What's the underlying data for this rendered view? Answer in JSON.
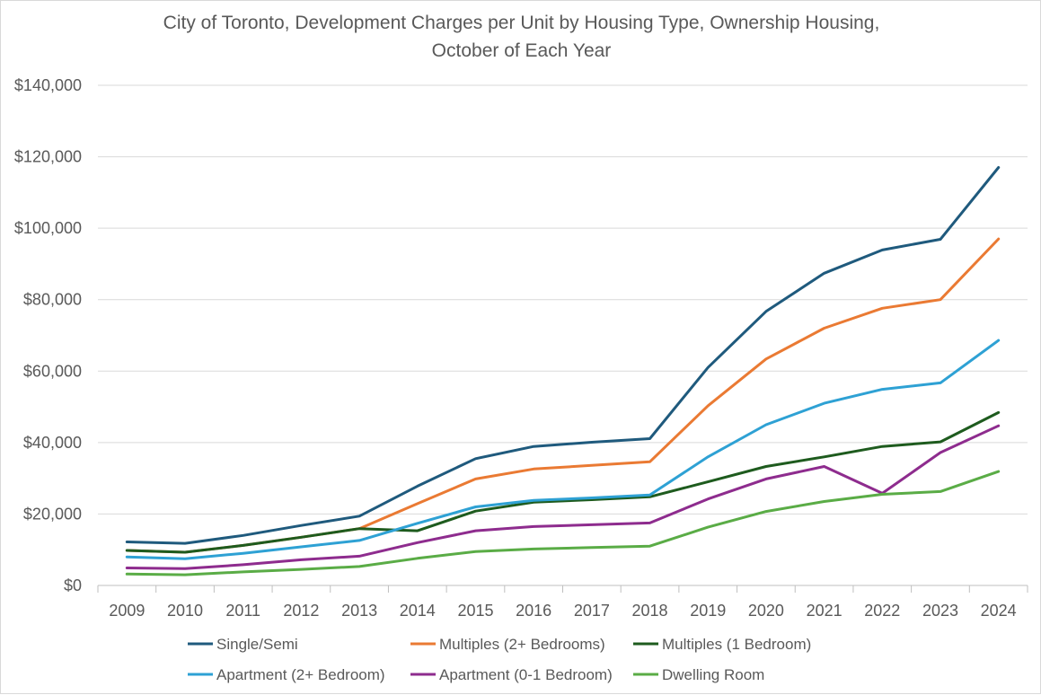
{
  "chart_data": {
    "type": "line",
    "title_line1": "City of Toronto, Development Charges per Unit by Housing Type, Ownership Housing,",
    "title_line2": "October of Each Year",
    "xlabel": "",
    "ylabel": "",
    "ylim": [
      0,
      140000
    ],
    "yticks": [
      0,
      20000,
      40000,
      60000,
      80000,
      100000,
      120000,
      140000
    ],
    "ytick_labels": [
      "$0",
      "$20,000",
      "$40,000",
      "$60,000",
      "$80,000",
      "$100,000",
      "$120,000",
      "$140,000"
    ],
    "grid": true,
    "legend_position": "bottom",
    "categories": [
      "2009",
      "2010",
      "2011",
      "2012",
      "2013",
      "2014",
      "2015",
      "2016",
      "2017",
      "2018",
      "2019",
      "2020",
      "2021",
      "2022",
      "2023",
      "2024"
    ],
    "series": [
      {
        "name": "Single/Semi",
        "color": "#1f5a7d",
        "values": [
          12200,
          11800,
          14000,
          16800,
          19400,
          27800,
          35500,
          38900,
          40100,
          41100,
          61000,
          76700,
          87400,
          93900,
          96900,
          117000
        ]
      },
      {
        "name": "Multiples (2+ Bedrooms)",
        "color": "#ea7a33",
        "values": [
          9800,
          9300,
          11200,
          13500,
          15900,
          22900,
          29800,
          32600,
          33600,
          34600,
          50300,
          63400,
          72000,
          77600,
          80000,
          97000
        ]
      },
      {
        "name": "Multiples (1 Bedroom)",
        "color": "#1e5b1e",
        "values": [
          9800,
          9300,
          11200,
          13500,
          15900,
          15300,
          20800,
          23300,
          24000,
          24800,
          29000,
          33300,
          36000,
          38900,
          40200,
          48400
        ]
      },
      {
        "name": "Apartment (2+ Bedroom)",
        "color": "#2ea1d4",
        "values": [
          8000,
          7500,
          9000,
          10800,
          12600,
          17400,
          22000,
          23800,
          24500,
          25300,
          36000,
          45000,
          51000,
          54900,
          56700,
          68600
        ]
      },
      {
        "name": "Apartment (0-1 Bedroom)",
        "color": "#8e2c8e",
        "values": [
          4900,
          4700,
          5800,
          7200,
          8200,
          12000,
          15300,
          16500,
          17000,
          17500,
          24200,
          29800,
          33300,
          25800,
          37200,
          44700
        ]
      },
      {
        "name": "Dwelling Room",
        "color": "#5aac46",
        "values": [
          3200,
          3000,
          3800,
          4500,
          5300,
          7600,
          9500,
          10200,
          10600,
          11000,
          16300,
          20700,
          23500,
          25500,
          26300,
          31900
        ]
      }
    ]
  }
}
